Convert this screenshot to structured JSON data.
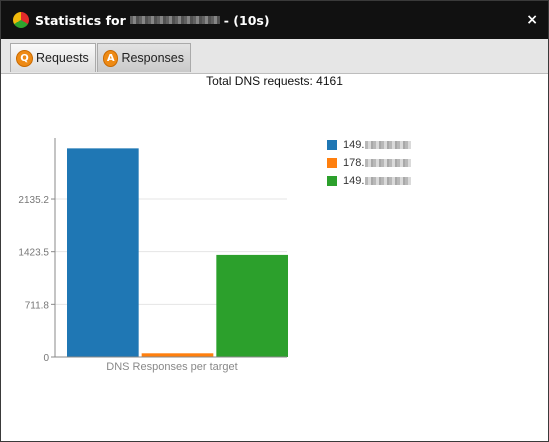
{
  "window": {
    "title_prefix": "Statistics for",
    "title_suffix": "- (10s)",
    "close_glyph": "×"
  },
  "tabs": [
    {
      "label": "Requests",
      "icon": "Q",
      "active": false
    },
    {
      "label": "Responses",
      "icon": "A",
      "active": true
    }
  ],
  "colors": {
    "series1": "#1f77b4",
    "series2": "#ff7f0e",
    "series3": "#2ca02c"
  },
  "chart_data": {
    "type": "bar",
    "title": "Total DNS requests: 4161",
    "xlabel": "DNS Responses per target",
    "ylabel": "",
    "yticks": [
      "0",
      "711.8",
      "1423.5",
      "2135.2"
    ],
    "ylim": [
      0,
      2960
    ],
    "grid": true,
    "legend_position": "right",
    "series": [
      {
        "name": "149.",
        "value": 2820,
        "color": "#1f77b4"
      },
      {
        "name": "178.",
        "value": 50,
        "color": "#ff7f0e"
      },
      {
        "name": "149.",
        "value": 1380,
        "color": "#2ca02c"
      }
    ]
  }
}
